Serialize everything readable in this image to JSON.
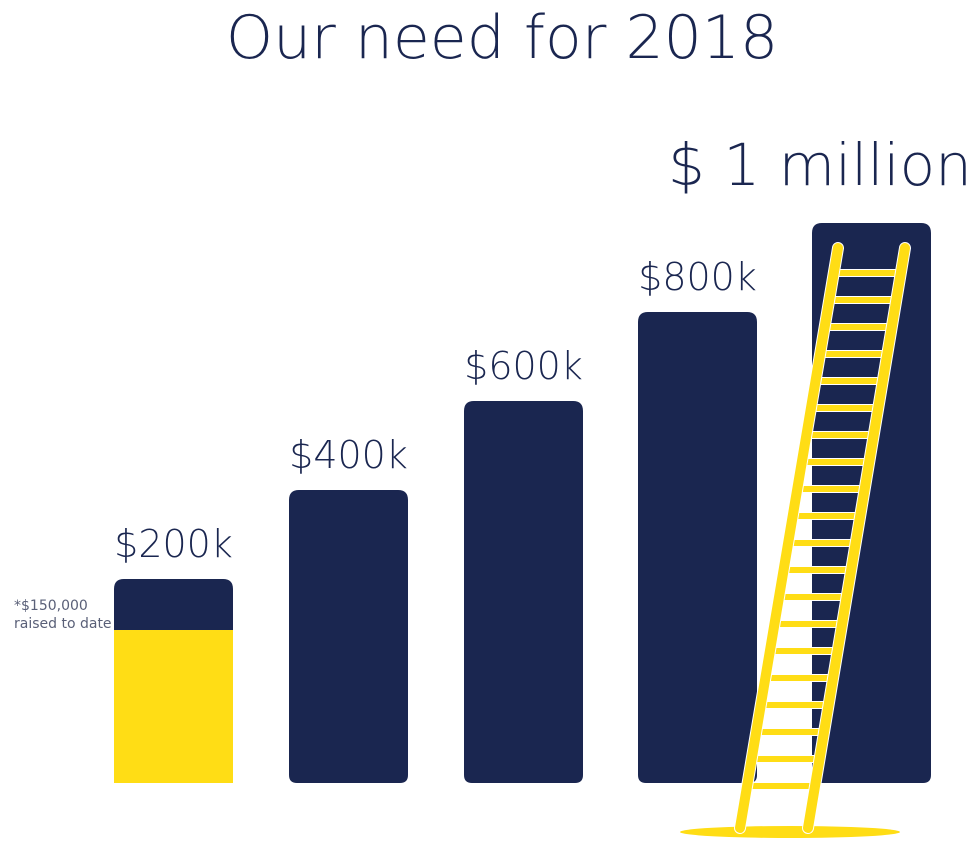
{
  "chart_data": {
    "type": "bar",
    "title": "Our need for 2018",
    "categories": [
      "$200k",
      "$400k",
      "$600k",
      "$800k",
      "$ 1 million"
    ],
    "values": [
      200000,
      400000,
      600000,
      800000,
      1000000
    ],
    "raised": {
      "value": 150000,
      "label_line1": "*$150,000",
      "label_line2": "raised to date"
    },
    "colors": {
      "bar": "#1a2650",
      "raised": "#ffdd15",
      "ladder": "#ffdd15",
      "text": "#1a2650",
      "note": "#5a6078"
    },
    "decoration": "ladder-icon"
  }
}
